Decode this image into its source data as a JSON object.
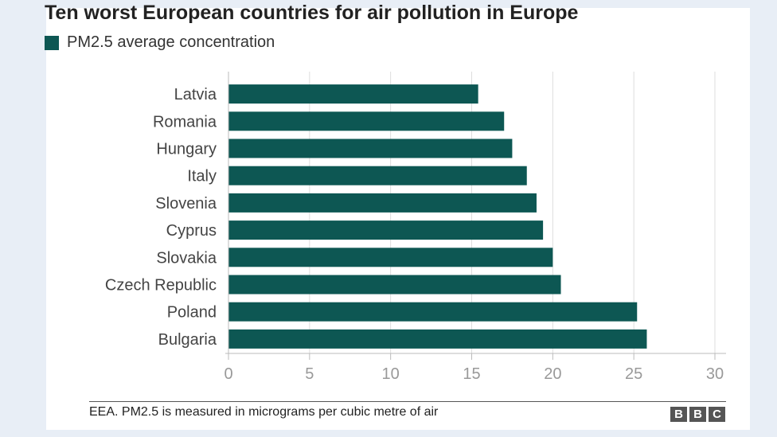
{
  "chart_data": {
    "type": "bar",
    "orientation": "horizontal",
    "title": "Ten worst European countries for air pollution in Europe",
    "categories": [
      "Latvia",
      "Romania",
      "Hungary",
      "Italy",
      "Slovenia",
      "Cyprus",
      "Slovakia",
      "Czech Republic",
      "Poland",
      "Bulgaria"
    ],
    "series": [
      {
        "name": "PM2.5 average concentration",
        "values": [
          15.4,
          17.0,
          17.5,
          18.4,
          19.0,
          19.4,
          20.0,
          20.5,
          25.2,
          25.8
        ],
        "color": "#0d5753"
      }
    ],
    "xlim": [
      0,
      30
    ],
    "xticks": [
      "0",
      "5",
      "10",
      "15",
      "20",
      "25",
      "30"
    ],
    "grid": "vertical",
    "legend_position": "top-left",
    "source": "EEA. PM2.5 is measured in micrograms per cubic metre of air"
  },
  "logo": {
    "letters": [
      "B",
      "B",
      "C"
    ]
  }
}
